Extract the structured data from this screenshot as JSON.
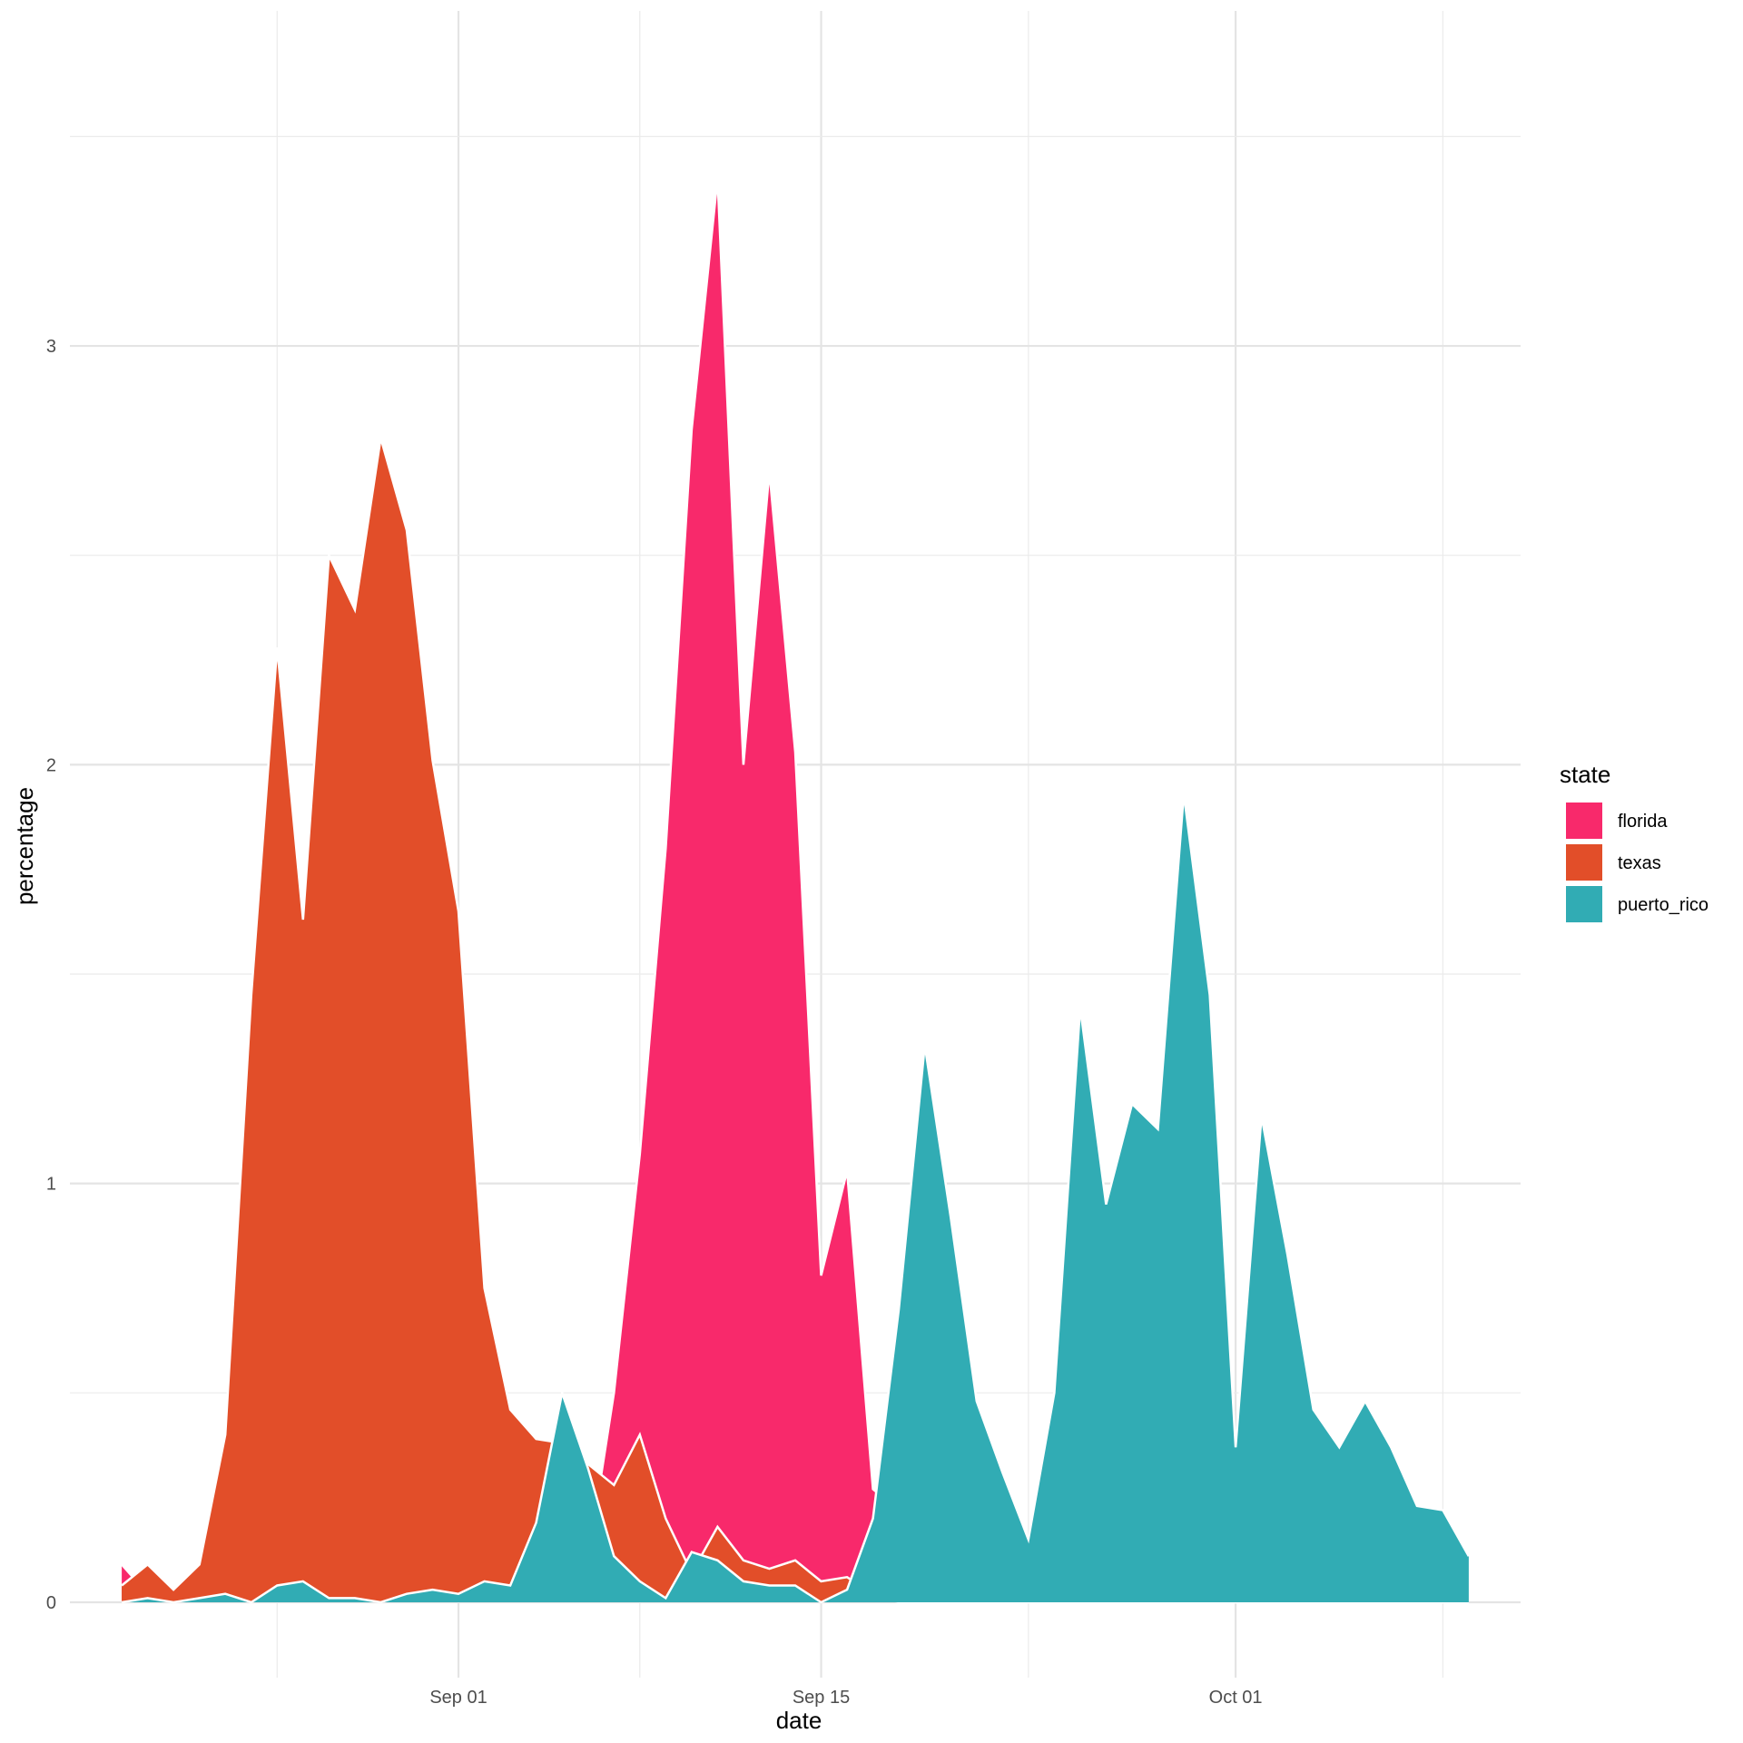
{
  "chart_data": {
    "type": "area",
    "xlabel": "date",
    "ylabel": "percentage",
    "x_ticks": [
      {
        "date": "2017-09-01",
        "label": "Sep 01"
      },
      {
        "date": "2017-09-15",
        "label": "Sep 15"
      },
      {
        "date": "2017-10-01",
        "label": "Oct 01"
      }
    ],
    "y_ticks": [
      0,
      1,
      2,
      3
    ],
    "xlim": [
      "2017-08-17",
      "2017-10-12"
    ],
    "ylim": [
      -0.18,
      3.8
    ],
    "grid": true,
    "legend": {
      "title": "state",
      "position": "right"
    },
    "x": [
      "2017-08-19",
      "2017-08-20",
      "2017-08-21",
      "2017-08-22",
      "2017-08-23",
      "2017-08-24",
      "2017-08-25",
      "2017-08-26",
      "2017-08-27",
      "2017-08-28",
      "2017-08-29",
      "2017-08-30",
      "2017-08-31",
      "2017-09-01",
      "2017-09-02",
      "2017-09-03",
      "2017-09-04",
      "2017-09-05",
      "2017-09-06",
      "2017-09-07",
      "2017-09-08",
      "2017-09-09",
      "2017-09-10",
      "2017-09-11",
      "2017-09-12",
      "2017-09-13",
      "2017-09-14",
      "2017-09-15",
      "2017-09-16",
      "2017-09-17",
      "2017-09-18",
      "2017-09-19",
      "2017-09-20",
      "2017-09-21",
      "2017-09-22",
      "2017-09-23",
      "2017-09-24",
      "2017-09-25",
      "2017-09-26",
      "2017-09-27",
      "2017-09-28",
      "2017-09-29",
      "2017-09-30",
      "2017-10-01",
      "2017-10-02",
      "2017-10-03",
      "2017-10-04",
      "2017-10-05",
      "2017-10-06",
      "2017-10-07",
      "2017-10-08",
      "2017-10-09",
      "2017-10-10"
    ],
    "series": [
      {
        "name": "florida",
        "color": "#F8296B",
        "values": [
          0.09,
          0.02,
          0.01,
          0.02,
          0.01,
          0.01,
          0.01,
          0.01,
          0.01,
          0.01,
          0.01,
          0.01,
          0.01,
          0.01,
          0.01,
          0.02,
          0.03,
          0.05,
          0.1,
          0.5,
          1.07,
          1.8,
          2.8,
          3.4,
          2.0,
          2.7,
          2.03,
          0.78,
          1.03,
          0.27,
          0.22,
          0.23,
          0.12,
          0.03,
          0.01,
          0.01,
          0.01,
          0.01,
          0.01,
          0.0,
          0.0,
          0.0,
          0.0,
          0.0,
          0.0,
          0.0,
          0.0,
          0.0,
          0.0,
          0.0,
          0.0,
          0.0,
          0.0
        ]
      },
      {
        "name": "texas",
        "color": "#E24E29",
        "values": [
          0.04,
          0.09,
          0.03,
          0.09,
          0.4,
          1.45,
          2.28,
          1.63,
          2.5,
          2.37,
          2.78,
          2.56,
          2.01,
          1.65,
          0.75,
          0.46,
          0.39,
          0.38,
          0.33,
          0.28,
          0.4,
          0.2,
          0.07,
          0.18,
          0.1,
          0.08,
          0.1,
          0.05,
          0.06,
          0.02,
          0.0,
          0.0,
          0.0,
          0.0,
          0.0,
          0.0,
          0.0,
          0.0,
          0.0,
          0.0,
          0.0,
          0.0,
          0.0,
          0.0,
          0.0,
          0.0,
          0.0,
          0.0,
          0.0,
          0.0,
          0.0,
          0.0,
          0.0
        ]
      },
      {
        "name": "puerto_rico",
        "color": "#31ACB4",
        "values": [
          0.0,
          0.01,
          0.0,
          0.01,
          0.02,
          0.0,
          0.04,
          0.05,
          0.01,
          0.01,
          0.0,
          0.02,
          0.03,
          0.02,
          0.05,
          0.04,
          0.19,
          0.5,
          0.32,
          0.11,
          0.05,
          0.01,
          0.12,
          0.1,
          0.05,
          0.04,
          0.04,
          0.0,
          0.03,
          0.2,
          0.7,
          1.33,
          0.92,
          0.48,
          0.31,
          0.15,
          0.5,
          1.42,
          0.95,
          1.19,
          1.13,
          1.93,
          1.45,
          0.37,
          1.16,
          0.83,
          0.46,
          0.37,
          0.48,
          0.37,
          0.23,
          0.22,
          0.11
        ]
      }
    ]
  }
}
